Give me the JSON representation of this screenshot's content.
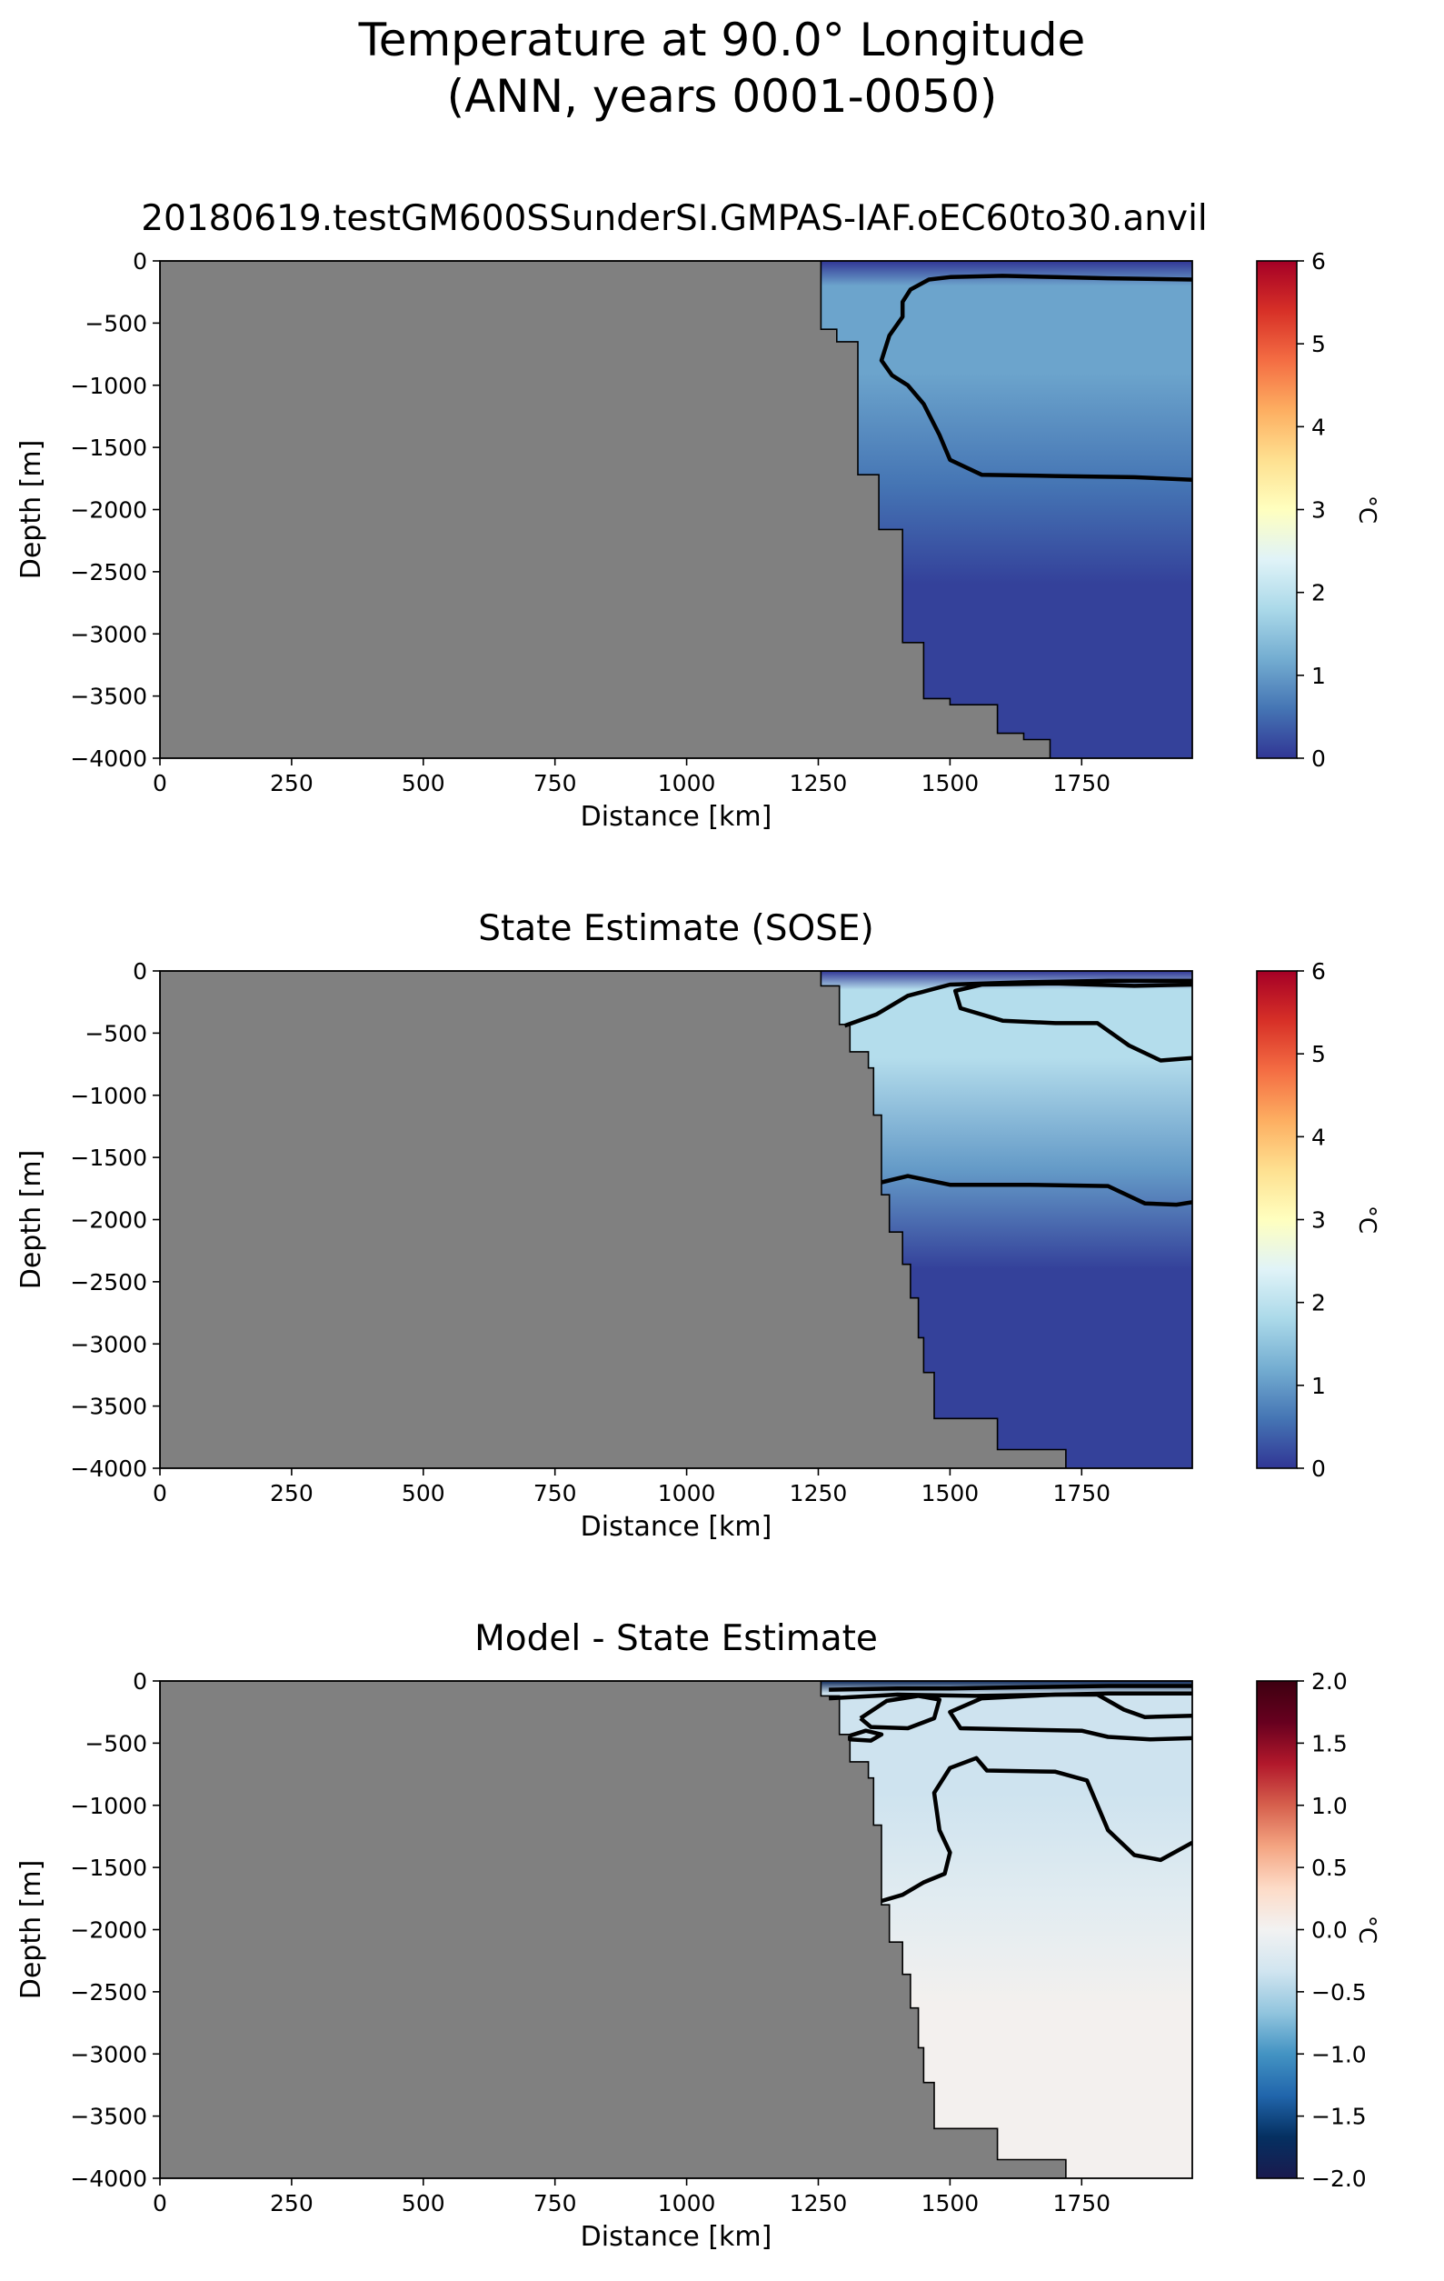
{
  "figure": {
    "title_line1": "Temperature at 90.0° Longitude",
    "title_line2": "(ANN, years 0001-0050)"
  },
  "chart_data": [
    {
      "type": "heatmap",
      "title": "20180619.testGM600SSunderSI.GMPAS-IAF.oEC60to30.anvil",
      "xlabel": "Distance [km]",
      "ylabel": "Depth [m]",
      "xlim": [
        0,
        1960
      ],
      "ylim": [
        -4000,
        0
      ],
      "x_ticks": [
        0,
        250,
        500,
        750,
        1000,
        1250,
        1500,
        1750
      ],
      "y_ticks": [
        0,
        -500,
        -1000,
        -1500,
        -2000,
        -2500,
        -3000,
        -3500,
        -4000
      ],
      "x_tick_labels": [
        "0",
        "250",
        "500",
        "750",
        "1000",
        "1250",
        "1500",
        "1750"
      ],
      "y_tick_labels": [
        "0",
        "−500",
        "−1000",
        "−1500",
        "−2000",
        "−2500",
        "−3000",
        "−3500",
        "−4000"
      ],
      "colormap": "RdYlBu_r",
      "colorbar": {
        "label": "°C",
        "range": [
          0,
          6
        ],
        "ticks": [
          0,
          1,
          2,
          3,
          4,
          5,
          6
        ],
        "tick_labels": [
          "0",
          "1",
          "2",
          "3",
          "4",
          "5",
          "6"
        ],
        "colors": [
          "#313695",
          "#4575b4",
          "#74add1",
          "#abd9e9",
          "#e0f3f8",
          "#ffffbf",
          "#fee090",
          "#fdae61",
          "#f46d43",
          "#d73027",
          "#a50026"
        ]
      },
      "land_color": "#808080",
      "bathymetry": [
        [
          1255,
          0
        ],
        [
          1255,
          -550
        ],
        [
          1285,
          -550
        ],
        [
          1285,
          -650
        ],
        [
          1325,
          -650
        ],
        [
          1325,
          -1720
        ],
        [
          1365,
          -1720
        ],
        [
          1365,
          -2160
        ],
        [
          1410,
          -2160
        ],
        [
          1410,
          -3070
        ],
        [
          1450,
          -3070
        ],
        [
          1450,
          -3520
        ],
        [
          1500,
          -3520
        ],
        [
          1500,
          -3570
        ],
        [
          1590,
          -3570
        ],
        [
          1590,
          -3800
        ],
        [
          1640,
          -3800
        ],
        [
          1640,
          -3850
        ],
        [
          1690,
          -3850
        ],
        [
          1690,
          -4000
        ]
      ],
      "contours": [
        {
          "level": 0,
          "points": [
            [
              1960,
              -150
            ],
            [
              1800,
              -140
            ],
            [
              1700,
              -130
            ],
            [
              1600,
              -120
            ],
            [
              1500,
              -130
            ],
            [
              1460,
              -150
            ],
            [
              1425,
              -230
            ],
            [
              1410,
              -330
            ],
            [
              1410,
              -450
            ],
            [
              1385,
              -600
            ],
            [
              1370,
              -800
            ],
            [
              1390,
              -920
            ],
            [
              1420,
              -1000
            ],
            [
              1450,
              -1150
            ],
            [
              1480,
              -1400
            ],
            [
              1500,
              -1600
            ],
            [
              1560,
              -1720
            ],
            [
              1700,
              -1730
            ],
            [
              1850,
              -1740
            ],
            [
              1960,
              -1760
            ]
          ]
        }
      ],
      "field": {
        "surface_value": 0.0,
        "core_value": 1.1,
        "core_depth_range": [
          -200,
          -900
        ],
        "deep_value": 0.1
      }
    },
    {
      "type": "heatmap",
      "title": "State Estimate (SOSE)",
      "xlabel": "Distance [km]",
      "ylabel": "Depth [m]",
      "xlim": [
        0,
        1960
      ],
      "ylim": [
        -4000,
        0
      ],
      "x_ticks": [
        0,
        250,
        500,
        750,
        1000,
        1250,
        1500,
        1750
      ],
      "y_ticks": [
        0,
        -500,
        -1000,
        -1500,
        -2000,
        -2500,
        -3000,
        -3500,
        -4000
      ],
      "x_tick_labels": [
        "0",
        "250",
        "500",
        "750",
        "1000",
        "1250",
        "1500",
        "1750"
      ],
      "y_tick_labels": [
        "0",
        "−500",
        "−1000",
        "−1500",
        "−2000",
        "−2500",
        "−3000",
        "−3500",
        "−4000"
      ],
      "colormap": "RdYlBu_r",
      "colorbar": {
        "label": "°C",
        "range": [
          0,
          6
        ],
        "ticks": [
          0,
          1,
          2,
          3,
          4,
          5,
          6
        ],
        "tick_labels": [
          "0",
          "1",
          "2",
          "3",
          "4",
          "5",
          "6"
        ],
        "colors": [
          "#313695",
          "#4575b4",
          "#74add1",
          "#abd9e9",
          "#e0f3f8",
          "#ffffbf",
          "#fee090",
          "#fdae61",
          "#f46d43",
          "#d73027",
          "#a50026"
        ]
      },
      "land_color": "#808080",
      "bathymetry": [
        [
          1255,
          0
        ],
        [
          1255,
          -120
        ],
        [
          1290,
          -120
        ],
        [
          1290,
          -430
        ],
        [
          1310,
          -430
        ],
        [
          1310,
          -650
        ],
        [
          1345,
          -650
        ],
        [
          1345,
          -780
        ],
        [
          1355,
          -780
        ],
        [
          1355,
          -1160
        ],
        [
          1370,
          -1160
        ],
        [
          1370,
          -1800
        ],
        [
          1385,
          -1800
        ],
        [
          1385,
          -2100
        ],
        [
          1410,
          -2100
        ],
        [
          1410,
          -2360
        ],
        [
          1425,
          -2360
        ],
        [
          1425,
          -2630
        ],
        [
          1440,
          -2630
        ],
        [
          1440,
          -2950
        ],
        [
          1450,
          -2950
        ],
        [
          1450,
          -3230
        ],
        [
          1470,
          -3230
        ],
        [
          1470,
          -3600
        ],
        [
          1590,
          -3600
        ],
        [
          1590,
          -3850
        ],
        [
          1720,
          -3850
        ],
        [
          1720,
          -4000
        ]
      ],
      "contours": [
        {
          "level": 0,
          "points": [
            [
              1300,
              -440
            ],
            [
              1360,
              -350
            ],
            [
              1420,
              -200
            ],
            [
              1500,
              -110
            ],
            [
              1650,
              -90
            ],
            [
              1800,
              -80
            ],
            [
              1960,
              -80
            ]
          ]
        },
        {
          "level": 1.5,
          "points": [
            [
              1960,
              -110
            ],
            [
              1850,
              -120
            ],
            [
              1700,
              -100
            ],
            [
              1560,
              -110
            ],
            [
              1510,
              -160
            ],
            [
              1520,
              -300
            ],
            [
              1600,
              -400
            ],
            [
              1700,
              -420
            ],
            [
              1780,
              -420
            ],
            [
              1840,
              -600
            ],
            [
              1900,
              -720
            ],
            [
              1960,
              -700
            ]
          ]
        },
        {
          "level": 0.5,
          "points": [
            [
              1370,
              -1700
            ],
            [
              1420,
              -1650
            ],
            [
              1500,
              -1720
            ],
            [
              1650,
              -1720
            ],
            [
              1800,
              -1730
            ],
            [
              1870,
              -1870
            ],
            [
              1930,
              -1880
            ],
            [
              1960,
              -1860
            ]
          ]
        }
      ],
      "field": {
        "surface_value": 0.0,
        "core_value": 1.9,
        "core_depth_range": [
          -150,
          -700
        ],
        "deep_value": 0.1
      }
    },
    {
      "type": "heatmap",
      "title": "Model - State Estimate",
      "xlabel": "Distance [km]",
      "ylabel": "Depth [m]",
      "xlim": [
        0,
        1960
      ],
      "ylim": [
        -4000,
        0
      ],
      "x_ticks": [
        0,
        250,
        500,
        750,
        1000,
        1250,
        1500,
        1750
      ],
      "y_ticks": [
        0,
        -500,
        -1000,
        -1500,
        -2000,
        -2500,
        -3000,
        -3500,
        -4000
      ],
      "x_tick_labels": [
        "0",
        "250",
        "500",
        "750",
        "1000",
        "1250",
        "1500",
        "1750"
      ],
      "y_tick_labels": [
        "0",
        "−500",
        "−1000",
        "−1500",
        "−2000",
        "−2500",
        "−3000",
        "−3500",
        "−4000"
      ],
      "colormap": "RdBu_r",
      "colorbar": {
        "label": "°C",
        "range": [
          -2,
          2
        ],
        "ticks": [
          -2,
          -1.5,
          -1,
          -0.5,
          0,
          0.5,
          1,
          1.5,
          2
        ],
        "tick_labels": [
          "−2.0",
          "−1.5",
          "−1.0",
          "−0.5",
          "0.0",
          "0.5",
          "1.0",
          "1.5",
          "2.0"
        ],
        "colors": [
          "#1a1a4e",
          "#053061",
          "#2166ac",
          "#4393c3",
          "#92c5de",
          "#d1e5f0",
          "#f2f2f2",
          "#fddbc7",
          "#f4a582",
          "#d6604d",
          "#b2182b",
          "#67001f",
          "#3d0010"
        ]
      },
      "land_color": "#808080",
      "bathymetry": [
        [
          1255,
          0
        ],
        [
          1255,
          -120
        ],
        [
          1290,
          -120
        ],
        [
          1290,
          -430
        ],
        [
          1310,
          -430
        ],
        [
          1310,
          -650
        ],
        [
          1345,
          -650
        ],
        [
          1345,
          -780
        ],
        [
          1355,
          -780
        ],
        [
          1355,
          -1160
        ],
        [
          1370,
          -1160
        ],
        [
          1370,
          -1800
        ],
        [
          1385,
          -1800
        ],
        [
          1385,
          -2100
        ],
        [
          1410,
          -2100
        ],
        [
          1410,
          -2360
        ],
        [
          1425,
          -2360
        ],
        [
          1425,
          -2630
        ],
        [
          1440,
          -2630
        ],
        [
          1440,
          -2950
        ],
        [
          1450,
          -2950
        ],
        [
          1450,
          -3230
        ],
        [
          1470,
          -3230
        ],
        [
          1470,
          -3600
        ],
        [
          1590,
          -3600
        ],
        [
          1590,
          -3850
        ],
        [
          1720,
          -3850
        ],
        [
          1720,
          -4000
        ]
      ],
      "contours": [
        {
          "level": -0.5,
          "points": [
            [
              1270,
              -70
            ],
            [
              1400,
              -60
            ],
            [
              1500,
              -60
            ],
            [
              1650,
              -50
            ],
            [
              1800,
              -40
            ],
            [
              1960,
              -40
            ]
          ]
        },
        {
          "level": -0.5,
          "points": [
            [
              1270,
              -140
            ],
            [
              1400,
              -110
            ],
            [
              1550,
              -120
            ],
            [
              1700,
              -110
            ],
            [
              1800,
              -100
            ],
            [
              1960,
              -100
            ]
          ]
        },
        {
          "level": -0.25,
          "points": [
            [
              1330,
              -300
            ],
            [
              1380,
              -160
            ],
            [
              1440,
              -120
            ],
            [
              1480,
              -150
            ],
            [
              1470,
              -300
            ],
            [
              1420,
              -380
            ],
            [
              1350,
              -370
            ],
            [
              1330,
              -300
            ]
          ]
        },
        {
          "level": -0.25,
          "points": [
            [
              1310,
              -440
            ],
            [
              1340,
              -400
            ],
            [
              1370,
              -430
            ],
            [
              1350,
              -480
            ],
            [
              1310,
              -470
            ],
            [
              1310,
              -440
            ]
          ]
        },
        {
          "level": 0,
          "points": [
            [
              1960,
              -280
            ],
            [
              1870,
              -290
            ],
            [
              1830,
              -230
            ],
            [
              1780,
              -110
            ],
            [
              1700,
              -110
            ],
            [
              1560,
              -140
            ],
            [
              1500,
              -250
            ],
            [
              1520,
              -380
            ],
            [
              1620,
              -390
            ],
            [
              1750,
              -400
            ],
            [
              1800,
              -450
            ],
            [
              1880,
              -470
            ],
            [
              1960,
              -460
            ]
          ]
        },
        {
          "level": 0.0,
          "points": [
            [
              1370,
              -1770
            ],
            [
              1410,
              -1720
            ],
            [
              1450,
              -1620
            ],
            [
              1490,
              -1550
            ],
            [
              1500,
              -1380
            ],
            [
              1480,
              -1200
            ],
            [
              1470,
              -900
            ],
            [
              1500,
              -700
            ],
            [
              1550,
              -620
            ],
            [
              1570,
              -720
            ],
            [
              1700,
              -730
            ],
            [
              1760,
              -800
            ],
            [
              1800,
              -1200
            ],
            [
              1850,
              -1400
            ],
            [
              1900,
              -1440
            ],
            [
              1960,
              -1300
            ]
          ]
        }
      ],
      "field": {
        "surface_value": -1.8,
        "core_value": -0.35,
        "core_depth_range": [
          -100,
          -900
        ],
        "deep_value": 0.03
      }
    }
  ]
}
